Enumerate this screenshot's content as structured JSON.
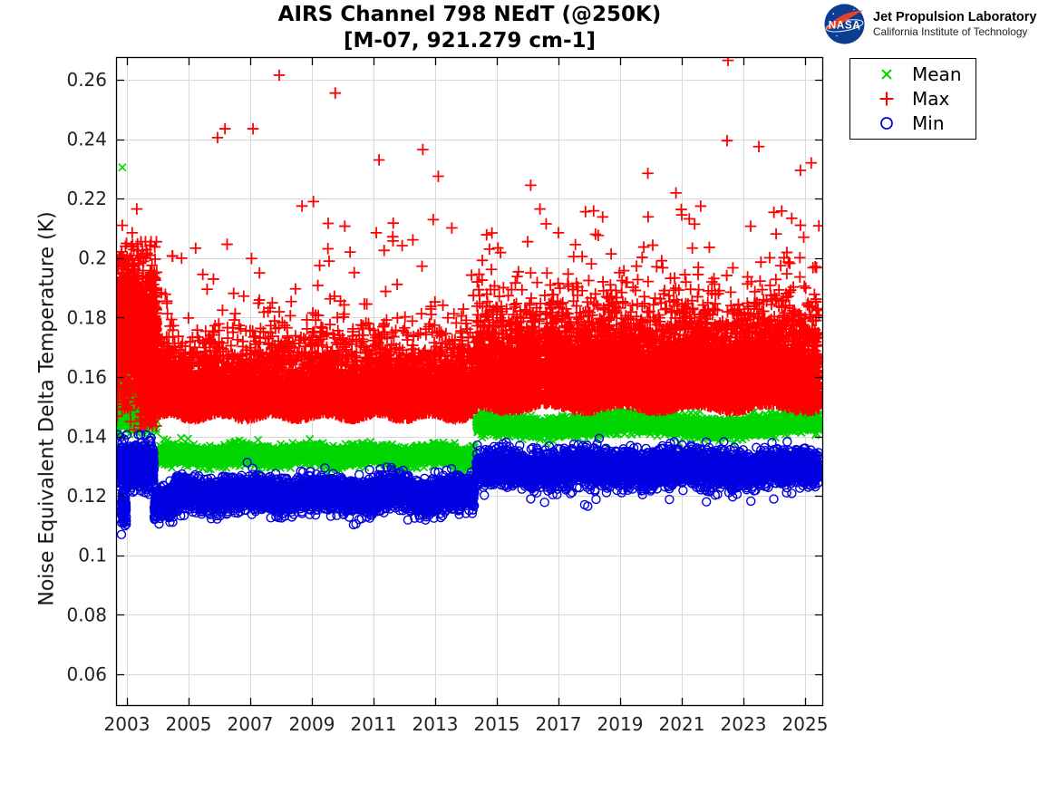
{
  "header": {
    "title_line1": "AIRS Channel 798 NEdT (@250K)",
    "title_line2": "[M-07, 921.279 cm-1]"
  },
  "branding": {
    "nasa_text": "NASA",
    "org_line1": "Jet Propulsion Laboratory",
    "org_line2": "California Institute of Technology",
    "logo_blue": "#0b3d91",
    "logo_red": "#e8402a"
  },
  "legend": {
    "items": [
      {
        "label": "Mean",
        "marker": "x",
        "color": "#00d500"
      },
      {
        "label": "Max",
        "marker": "+",
        "color": "#ff0000"
      },
      {
        "label": "Min",
        "marker": "o",
        "color": "#0000e0"
      }
    ]
  },
  "chart_data": {
    "type": "scatter",
    "title": "AIRS Channel 798 NEdT (@250K)",
    "subtitle": "[M-07, 921.279 cm-1]",
    "xlabel": "",
    "ylabel": "Noise Equivalent Delta Temperature (K)",
    "xlim": [
      2002.647,
      2025.588
    ],
    "ylim": [
      0.0493,
      0.2676
    ],
    "x_ticks": [
      2003,
      2005,
      2007,
      2009,
      2011,
      2013,
      2015,
      2017,
      2019,
      2021,
      2023,
      2025
    ],
    "y_ticks": [
      0.06,
      0.08,
      0.1,
      0.12,
      0.14,
      0.16,
      0.18,
      0.2,
      0.22,
      0.24,
      0.26
    ],
    "y_tick_labels": [
      "0.06",
      "0.08",
      "0.1",
      "0.12",
      "0.14",
      "0.16",
      "0.18",
      "0.2",
      "0.22",
      "0.24",
      "0.26"
    ],
    "grid": true,
    "grid_color": "#d9d9d9",
    "axis_color": "#000000",
    "tick_text_color": "#222222",
    "legend_position": "outside-top-right",
    "seed": 20,
    "gaps": [
      [
        2016.42,
        2016.54
      ]
    ],
    "description": "Daily Mean/Max/Min NEdT trend 2002.65-2025.45; step changes near 2004.0 and 2014.3",
    "series": [
      {
        "name": "Mean",
        "marker": "x",
        "color": "#00d500",
        "band_summary": {
          "2002.7-2003.9": 0.152,
          "2004-2014.3": 0.1336,
          "2014.3-2025.4": 0.1438
        },
        "segments": [
          {
            "from": 2002.65,
            "to": 2003.97,
            "per_year": 620,
            "center": 0.1522,
            "sigma": 0.0046,
            "clip": [
              0.1408,
              0.1655
            ]
          },
          {
            "from": 2004.05,
            "to": 2014.28,
            "per_year": 430,
            "center": 0.1336,
            "sigma": 0.0015,
            "wiggle": [
              0.0007,
              2.1,
              0
            ]
          },
          {
            "from": 2014.33,
            "to": 2025.46,
            "per_year": 430,
            "center": 0.1438,
            "sigma": 0.0015,
            "wiggle": [
              0.0011,
              5.6,
              2.1
            ]
          }
        ],
        "outliers": [
          [
            2002.85,
            0.2305
          ]
        ]
      },
      {
        "name": "Max",
        "marker": "+",
        "color": "#ff0000",
        "band_summary": {
          "2002.7-2003.9": "0.155-0.20",
          "2004-2014.3": "0.147-0.19",
          "2014.3-2025.4": "0.15-0.20"
        },
        "segments": [
          {
            "from": 2002.65,
            "to": 2003.42,
            "per_year": 1050,
            "center": 0.177,
            "sigma": 0.0115,
            "clip": [
              0.1415,
              0.2085
            ]
          },
          {
            "from": 2003.42,
            "to": 2003.97,
            "per_year": 1500,
            "center": 0.1705,
            "sigma": 0.0125,
            "clip": [
              0.1435,
              0.2055
            ]
          },
          {
            "from": 2004.02,
            "to": 2014.28,
            "per_year": 560,
            "center": 0.1468,
            "sigma": 0.008,
            "half": true,
            "mix_rate": 0.26,
            "mix_center": 0.1535,
            "mix_sigma": 0.0115,
            "spike_rate": 0.0045,
            "spike_range": [
              0.186,
              0.213
            ],
            "wiggle": [
              0.001,
              1.7,
              0.5
            ]
          },
          {
            "from": 2014.33,
            "to": 2025.46,
            "per_year": 760,
            "center": 0.1497,
            "sigma": 0.0095,
            "half": true,
            "mix_rate": 0.36,
            "mix_center": 0.158,
            "mix_sigma": 0.0135,
            "spike_rate": 0.007,
            "spike_range": [
              0.189,
              0.222
            ],
            "wiggle": [
              0.0012,
              2.4,
              1.9
            ]
          }
        ],
        "outliers": [
          [
            2002.85,
            0.211
          ],
          [
            2003.32,
            0.2165
          ],
          [
            2003.6,
            0.2055
          ],
          [
            2005.6,
            0.1895
          ],
          [
            2005.94,
            0.2405
          ],
          [
            2006.18,
            0.2435
          ],
          [
            2007.09,
            0.2435
          ],
          [
            2007.3,
            0.195
          ],
          [
            2007.94,
            0.2615
          ],
          [
            2008.68,
            0.2175
          ],
          [
            2009.05,
            0.219
          ],
          [
            2009.76,
            0.2555
          ],
          [
            2010.24,
            0.202
          ],
          [
            2011.09,
            0.2085
          ],
          [
            2011.18,
            0.233
          ],
          [
            2012.6,
            0.2365
          ],
          [
            2013.1,
            0.2275
          ],
          [
            2014.76,
            0.203
          ],
          [
            2016.0,
            0.2055
          ],
          [
            2016.1,
            0.2245
          ],
          [
            2016.4,
            0.2165
          ],
          [
            2016.6,
            0.2115
          ],
          [
            2017.0,
            0.2085
          ],
          [
            2018.2,
            0.208
          ],
          [
            2019.9,
            0.2285
          ],
          [
            2021.0,
            0.2145
          ],
          [
            2022.47,
            0.2395
          ],
          [
            2022.5,
            0.2665
          ],
          [
            2023.5,
            0.2375
          ],
          [
            2024.85,
            0.2295
          ],
          [
            2025.2,
            0.232
          ]
        ]
      },
      {
        "name": "Min",
        "marker": "o",
        "color": "#0000e0",
        "band_summary": {
          "2002.7-2003.9": 0.1305,
          "2004-2014.3": 0.1206,
          "2014.3-2025.4": 0.1292
        },
        "segments": [
          {
            "from": 2002.65,
            "to": 2003.88,
            "per_year": 560,
            "center": 0.1305,
            "sigma": 0.0036,
            "clip": [
              0.1205,
              0.1405
            ]
          },
          {
            "from": 2002.82,
            "to": 2002.98,
            "per_year": 650,
            "center": 0.1158,
            "sigma": 0.0022
          },
          {
            "from": 2003.88,
            "to": 2004.5,
            "per_year": 420,
            "center": 0.1172,
            "sigma": 0.0025
          },
          {
            "from": 2004.5,
            "to": 2014.28,
            "per_year": 430,
            "center": 0.1206,
            "sigma": 0.0026,
            "wiggle": [
              0.0009,
              2.3,
              1.2
            ],
            "low_rate": 0.012,
            "low_range": [
              0.003,
              0.008
            ]
          },
          {
            "from": 2014.33,
            "to": 2025.46,
            "per_year": 430,
            "center": 0.1292,
            "sigma": 0.0028,
            "wiggle": [
              0.0008,
              3.1,
              0.4
            ],
            "low_rate": 0.009,
            "low_range": [
              0.004,
              0.009
            ]
          }
        ],
        "outliers": [
          [
            2010.35,
            0.1103
          ],
          [
            2005.45,
            0.1148
          ],
          [
            2006.6,
            0.1142
          ],
          [
            2008.05,
            0.1152
          ],
          [
            2012.2,
            0.1148
          ],
          [
            2016.1,
            0.119
          ],
          [
            2016.55,
            0.1178
          ],
          [
            2017.85,
            0.117
          ],
          [
            2017.95,
            0.1165
          ],
          [
            2021.8,
            0.118
          ],
          [
            2020.6,
            0.1188
          ],
          [
            2024.4,
            0.121
          ]
        ]
      }
    ]
  }
}
